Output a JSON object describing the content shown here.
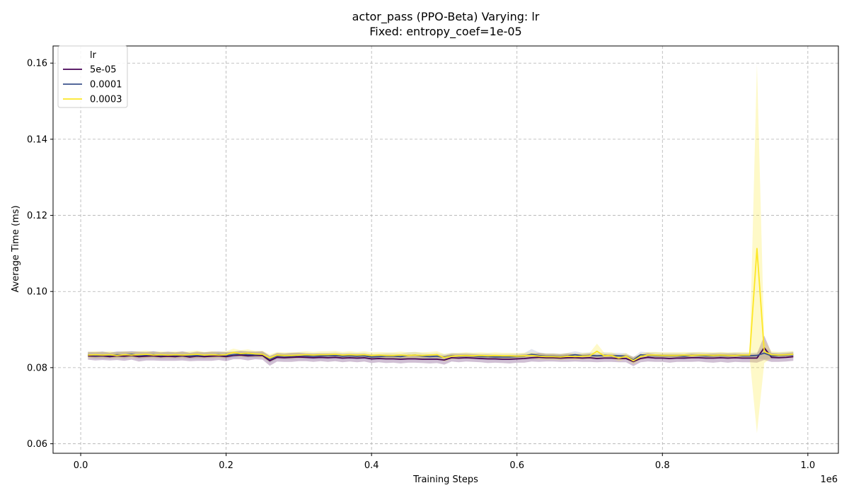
{
  "chart_data": {
    "type": "line",
    "title": [
      "actor_pass (PPO-Beta) Varying: lr",
      "Fixed: entropy_coef=1e-05"
    ],
    "xlabel": "Training Steps",
    "ylabel": "Average Time (ms)",
    "x_offset_text": "1e6",
    "xlim": [
      -0.038,
      1.042
    ],
    "ylim": [
      0.0575,
      0.1645
    ],
    "xticks": [
      0.0,
      0.2,
      0.4,
      0.6,
      0.8,
      1.0
    ],
    "xtick_labels": [
      "0.0",
      "0.2",
      "0.4",
      "0.6",
      "0.8",
      "1.0"
    ],
    "yticks": [
      0.06,
      0.08,
      0.1,
      0.12,
      0.14,
      0.16
    ],
    "ytick_labels": [
      "0.06",
      "0.08",
      "0.10",
      "0.12",
      "0.14",
      "0.16"
    ],
    "grid": true,
    "legend": {
      "title": "lr",
      "position": "top-left"
    },
    "series": [
      {
        "name": "5e-05",
        "color": "#440154",
        "band_color": "#440154",
        "band_opacity": 0.25,
        "x_start": 0.01,
        "x_step": 0.01,
        "values": [
          0.0831,
          0.083,
          0.0831,
          0.0829,
          0.0831,
          0.083,
          0.0832,
          0.0829,
          0.083,
          0.0831,
          0.0829,
          0.083,
          0.0829,
          0.0831,
          0.0828,
          0.083,
          0.0829,
          0.083,
          0.0831,
          0.0829,
          0.0832,
          0.0833,
          0.0831,
          0.0832,
          0.0832,
          0.0818,
          0.0827,
          0.0826,
          0.0827,
          0.0828,
          0.0827,
          0.0826,
          0.0827,
          0.0826,
          0.0827,
          0.0825,
          0.0826,
          0.0825,
          0.0826,
          0.0823,
          0.0824,
          0.0823,
          0.0823,
          0.0822,
          0.0823,
          0.0823,
          0.0822,
          0.0822,
          0.0822,
          0.082,
          0.0826,
          0.0825,
          0.0826,
          0.0825,
          0.0824,
          0.0823,
          0.0823,
          0.0822,
          0.0822,
          0.0823,
          0.0824,
          0.0826,
          0.0827,
          0.0826,
          0.0826,
          0.0825,
          0.0826,
          0.0826,
          0.0825,
          0.0826,
          0.0824,
          0.0825,
          0.0825,
          0.0824,
          0.0824,
          0.0816,
          0.0824,
          0.0827,
          0.0825,
          0.0825,
          0.0824,
          0.0825,
          0.0825,
          0.0826,
          0.0826,
          0.0825,
          0.0825,
          0.0826,
          0.0825,
          0.0826,
          0.0825,
          0.0825,
          0.0825,
          0.0852,
          0.0827,
          0.0826,
          0.0827,
          0.0829
        ],
        "spread": [
          0.001,
          0.0011,
          0.0011,
          0.001,
          0.0011,
          0.0012,
          0.0011,
          0.0013,
          0.0011,
          0.0012,
          0.0011,
          0.0012,
          0.0011,
          0.0012,
          0.0011,
          0.0012,
          0.0011,
          0.0012,
          0.0011,
          0.0012,
          0.001,
          0.0011,
          0.0012,
          0.001,
          0.0011,
          0.0013,
          0.0011,
          0.0011,
          0.0012,
          0.0011,
          0.001,
          0.0011,
          0.001,
          0.0011,
          0.001,
          0.0011,
          0.001,
          0.0011,
          0.001,
          0.0011,
          0.001,
          0.0011,
          0.001,
          0.0011,
          0.001,
          0.001,
          0.001,
          0.0011,
          0.001,
          0.0012,
          0.001,
          0.0011,
          0.001,
          0.001,
          0.001,
          0.0011,
          0.001,
          0.001,
          0.0011,
          0.001,
          0.0011,
          0.001,
          0.0012,
          0.001,
          0.001,
          0.001,
          0.0011,
          0.001,
          0.001,
          0.0011,
          0.001,
          0.001,
          0.001,
          0.001,
          0.001,
          0.0012,
          0.001,
          0.0011,
          0.001,
          0.001,
          0.0011,
          0.001,
          0.001,
          0.0011,
          0.001,
          0.0011,
          0.0012,
          0.0011,
          0.0012,
          0.0011,
          0.0011,
          0.0011,
          0.0012,
          0.0032,
          0.0012,
          0.0011,
          0.0011,
          0.0011
        ]
      },
      {
        "name": "0.0001",
        "color": "#3b528b",
        "band_color": "#3b528b",
        "band_opacity": 0.15,
        "x_start": 0.01,
        "x_step": 0.01,
        "values": [
          0.0834,
          0.0832,
          0.0833,
          0.0832,
          0.0834,
          0.0833,
          0.0835,
          0.0832,
          0.0833,
          0.0834,
          0.0832,
          0.0833,
          0.0832,
          0.0833,
          0.0831,
          0.0832,
          0.0832,
          0.0833,
          0.0834,
          0.0832,
          0.0834,
          0.0836,
          0.0834,
          0.0834,
          0.0835,
          0.0822,
          0.0831,
          0.083,
          0.083,
          0.0832,
          0.0831,
          0.083,
          0.0831,
          0.0831,
          0.0832,
          0.083,
          0.0831,
          0.083,
          0.0831,
          0.0828,
          0.0829,
          0.083,
          0.083,
          0.0829,
          0.0832,
          0.0833,
          0.083,
          0.0829,
          0.083,
          0.0827,
          0.0831,
          0.083,
          0.0831,
          0.083,
          0.0829,
          0.0829,
          0.0828,
          0.0828,
          0.0828,
          0.0829,
          0.083,
          0.0835,
          0.0832,
          0.083,
          0.083,
          0.0829,
          0.0831,
          0.0834,
          0.0831,
          0.0832,
          0.0831,
          0.0832,
          0.0831,
          0.0831,
          0.083,
          0.082,
          0.0834,
          0.0832,
          0.0832,
          0.0831,
          0.0831,
          0.0831,
          0.083,
          0.0832,
          0.0832,
          0.0831,
          0.0831,
          0.0832,
          0.0831,
          0.0832,
          0.0831,
          0.0831,
          0.0832,
          0.0838,
          0.0831,
          0.0832,
          0.0833,
          0.0834
        ],
        "spread": [
          0.0008,
          0.0008,
          0.0009,
          0.0008,
          0.0008,
          0.0009,
          0.0008,
          0.0009,
          0.0008,
          0.0009,
          0.0008,
          0.0008,
          0.0008,
          0.0008,
          0.0008,
          0.0008,
          0.0008,
          0.0008,
          0.0008,
          0.0008,
          0.0008,
          0.0008,
          0.0008,
          0.0008,
          0.0008,
          0.0009,
          0.0008,
          0.0008,
          0.0008,
          0.0008,
          0.0008,
          0.0008,
          0.0008,
          0.0008,
          0.0008,
          0.0008,
          0.0008,
          0.0008,
          0.0008,
          0.0008,
          0.0008,
          0.0008,
          0.0008,
          0.0008,
          0.0008,
          0.0008,
          0.0008,
          0.0008,
          0.0008,
          0.0008,
          0.0008,
          0.0008,
          0.0008,
          0.0008,
          0.0008,
          0.0008,
          0.0008,
          0.0008,
          0.0008,
          0.0008,
          0.0008,
          0.0014,
          0.0008,
          0.0008,
          0.0008,
          0.0008,
          0.0008,
          0.0009,
          0.0008,
          0.0008,
          0.0008,
          0.0008,
          0.0008,
          0.0008,
          0.0008,
          0.0008,
          0.0008,
          0.0008,
          0.0008,
          0.0008,
          0.0008,
          0.0008,
          0.0008,
          0.0008,
          0.0008,
          0.0008,
          0.0008,
          0.0008,
          0.0008,
          0.0008,
          0.0008,
          0.0008,
          0.0008,
          0.0016,
          0.0008,
          0.0008,
          0.0008,
          0.0008
        ]
      },
      {
        "name": "0.0003",
        "color": "#fde725",
        "band_color": "#fde725",
        "band_opacity": 0.25,
        "x_start": 0.01,
        "x_step": 0.01,
        "values": [
          0.0833,
          0.0834,
          0.0833,
          0.0834,
          0.0832,
          0.0834,
          0.0833,
          0.0834,
          0.0835,
          0.0833,
          0.0834,
          0.0833,
          0.0834,
          0.0833,
          0.0834,
          0.0835,
          0.0833,
          0.0834,
          0.0833,
          0.0834,
          0.084,
          0.0837,
          0.0838,
          0.0836,
          0.0835,
          0.0825,
          0.0833,
          0.0832,
          0.0832,
          0.0833,
          0.0834,
          0.0833,
          0.0834,
          0.0834,
          0.0835,
          0.0833,
          0.0834,
          0.0833,
          0.0834,
          0.0832,
          0.0833,
          0.0832,
          0.0832,
          0.0833,
          0.0832,
          0.0833,
          0.0832,
          0.0833,
          0.0834,
          0.0826,
          0.083,
          0.0831,
          0.0832,
          0.0831,
          0.0832,
          0.0831,
          0.0832,
          0.0831,
          0.0831,
          0.083,
          0.0831,
          0.0832,
          0.083,
          0.0829,
          0.0829,
          0.0828,
          0.083,
          0.0829,
          0.083,
          0.0831,
          0.0843,
          0.0831,
          0.0832,
          0.0825,
          0.083,
          0.0818,
          0.0829,
          0.0833,
          0.0833,
          0.0832,
          0.0832,
          0.0832,
          0.0833,
          0.0832,
          0.0833,
          0.0833,
          0.0832,
          0.0833,
          0.0832,
          0.0832,
          0.0833,
          0.0833,
          0.1113,
          0.0842,
          0.0834,
          0.0833,
          0.0834,
          0.0835
        ],
        "spread": [
          0.0008,
          0.0009,
          0.0008,
          0.0009,
          0.0008,
          0.0009,
          0.0008,
          0.0009,
          0.001,
          0.0008,
          0.0009,
          0.0008,
          0.0009,
          0.0008,
          0.0009,
          0.001,
          0.0008,
          0.0009,
          0.0008,
          0.0009,
          0.001,
          0.0009,
          0.001,
          0.0008,
          0.0009,
          0.001,
          0.0008,
          0.0008,
          0.0008,
          0.0008,
          0.0009,
          0.0008,
          0.0009,
          0.0009,
          0.0009,
          0.0008,
          0.0009,
          0.0008,
          0.0009,
          0.0008,
          0.0008,
          0.0008,
          0.0008,
          0.0009,
          0.0008,
          0.0008,
          0.0008,
          0.0008,
          0.0009,
          0.001,
          0.0008,
          0.0008,
          0.0008,
          0.0008,
          0.0008,
          0.0008,
          0.0008,
          0.0008,
          0.0008,
          0.0008,
          0.0008,
          0.0008,
          0.0008,
          0.0008,
          0.0008,
          0.0008,
          0.0008,
          0.0008,
          0.0008,
          0.0008,
          0.002,
          0.0008,
          0.0008,
          0.0008,
          0.0008,
          0.0009,
          0.0008,
          0.0008,
          0.0008,
          0.0008,
          0.0008,
          0.0008,
          0.0008,
          0.0008,
          0.0008,
          0.0008,
          0.0008,
          0.0008,
          0.0008,
          0.0008,
          0.0008,
          0.0008,
          0.0485,
          0.003,
          0.0009,
          0.0008,
          0.0008,
          0.0009
        ]
      }
    ]
  }
}
